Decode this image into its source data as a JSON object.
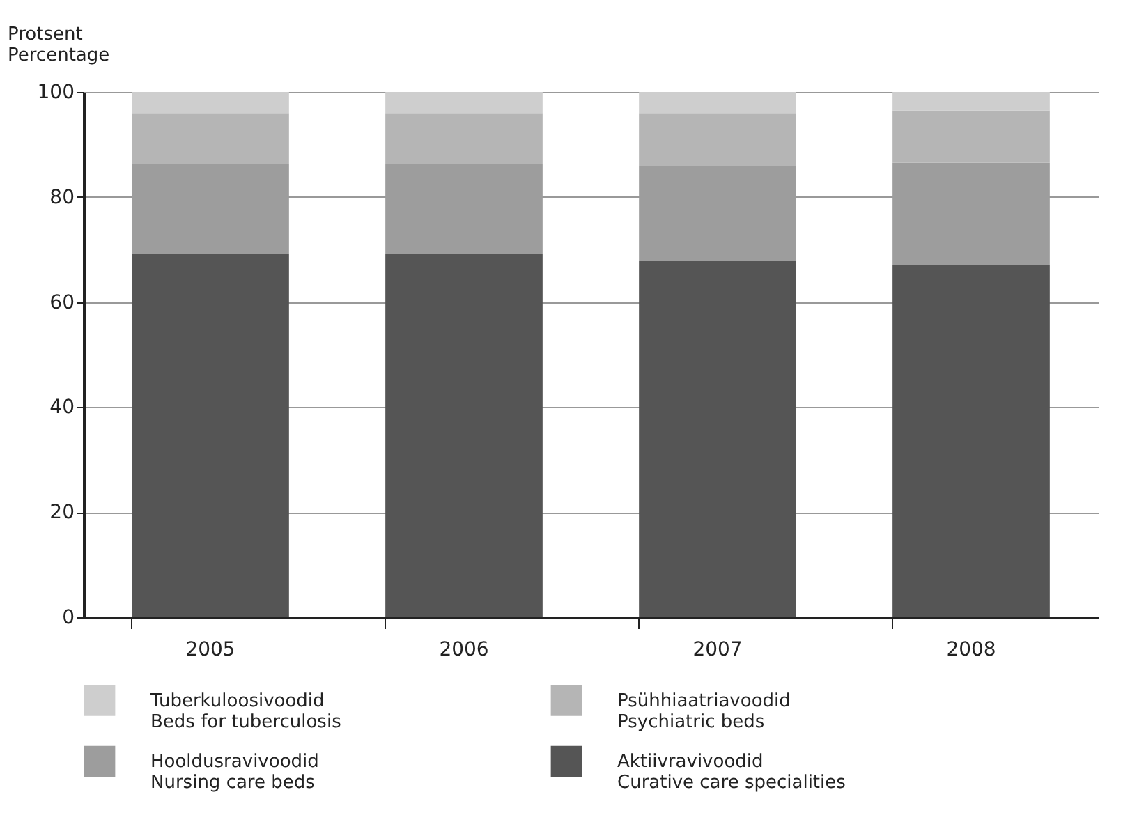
{
  "chart_data": {
    "type": "bar",
    "stacked": true,
    "ylabel": "Protsent\nPercentage",
    "categories": [
      "2005",
      "2006",
      "2007",
      "2008"
    ],
    "series": [
      {
        "name": "Aktiivravivoodid\nCurative care specialities",
        "color": "#555555",
        "values": [
          69.2,
          69.2,
          67.9,
          67.1
        ]
      },
      {
        "name": "Hooldusravivoodid\nNursing care beds",
        "color": "#9d9d9d",
        "values": [
          17.0,
          17.0,
          18.0,
          19.4
        ]
      },
      {
        "name": "Psühhiaatriavoodid\nPsychiatric beds",
        "color": "#b5b5b5",
        "values": [
          9.8,
          9.8,
          10.1,
          10.0
        ]
      },
      {
        "name": "Tuberkuloosivoodid\nBeds for tuberculosis",
        "color": "#cecece",
        "values": [
          4.0,
          4.0,
          4.0,
          3.5
        ]
      }
    ],
    "ylim": [
      0,
      100
    ],
    "yticks": [
      0,
      20,
      40,
      60,
      80,
      100
    ],
    "grid": "y",
    "legend": "bottom"
  }
}
